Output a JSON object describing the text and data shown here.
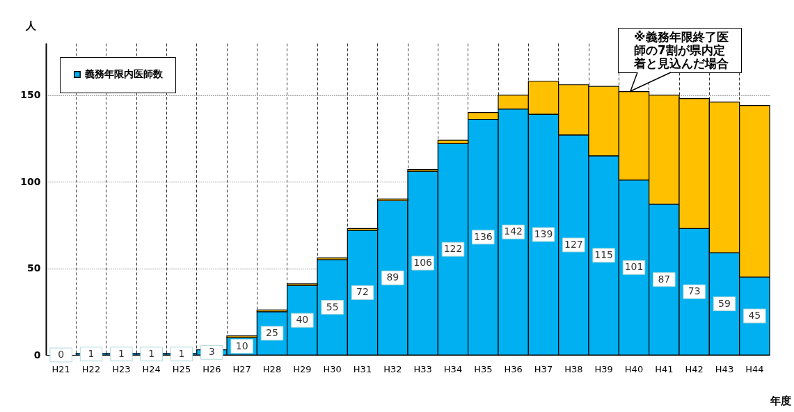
{
  "chart_data": {
    "type": "bar",
    "stacked": true,
    "ylabel": "人",
    "xlabel": "年度",
    "categories": [
      "H21",
      "H22",
      "H23",
      "H24",
      "H25",
      "H26",
      "H27",
      "H28",
      "H29",
      "H30",
      "H31",
      "H32",
      "H33",
      "H34",
      "H35",
      "H36",
      "H37",
      "H38",
      "H39",
      "H40",
      "H41",
      "H42",
      "H43",
      "H44"
    ],
    "series": [
      {
        "name": "義務年限内医師数",
        "color": "#00b0f0",
        "values": [
          0,
          1,
          1,
          1,
          1,
          3,
          10,
          25,
          40,
          55,
          72,
          89,
          106,
          122,
          136,
          142,
          139,
          127,
          115,
          101,
          87,
          73,
          59,
          45
        ],
        "value_labels": [
          "0",
          "1",
          "1",
          "1",
          "1",
          "3",
          "10",
          "25",
          "40",
          "55",
          "72",
          "89",
          "106",
          "122",
          "136",
          "142",
          "139",
          "127",
          "115",
          "101",
          "87",
          "73",
          "59",
          "45"
        ]
      },
      {
        "color": "#ffc000",
        "values": [
          0,
          0,
          0,
          0,
          0,
          null,
          1,
          1,
          1,
          1,
          1,
          1,
          1,
          2,
          4,
          8,
          19,
          29,
          40,
          51,
          63,
          75,
          87,
          99
        ]
      }
    ],
    "ylim": [
      0,
      180
    ],
    "yticks": [
      0,
      50,
      100,
      150
    ],
    "grid": true,
    "legend": "top left",
    "annotations": [
      "※義務年限終了医師の7割が県内定着と見込んだ場合"
    ]
  }
}
